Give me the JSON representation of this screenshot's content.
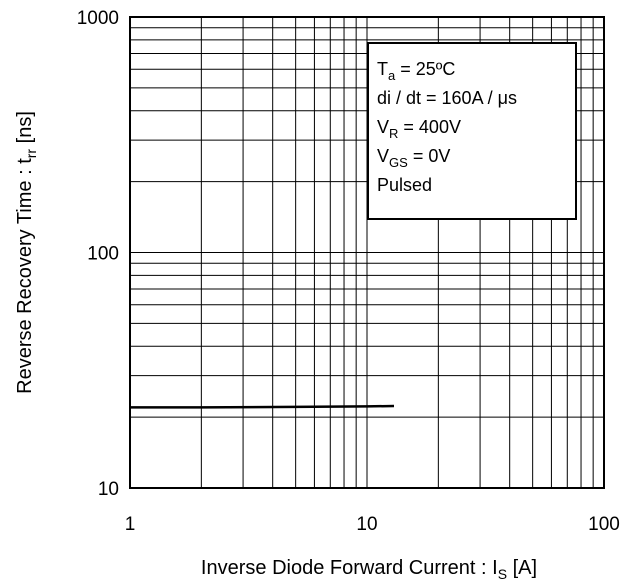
{
  "chart_data": {
    "type": "line",
    "xscale": "log",
    "yscale": "log",
    "xlim": [
      1,
      100
    ],
    "ylim": [
      10,
      1000
    ],
    "grid": true,
    "x_ticks": [
      "1",
      "10",
      "100"
    ],
    "y_ticks": [
      "1000",
      "100",
      "10"
    ],
    "xlabel": {
      "text": "Inverse Diode  Forward Current : I",
      "sub": "S",
      "suffix": " [A]"
    },
    "ylabel": {
      "text": "Reverse Recovery Time : t",
      "sub": "rr",
      "suffix": " [ns]"
    },
    "series": [
      {
        "x": [
          1,
          2,
          5,
          10,
          13
        ],
        "y": [
          22,
          22,
          22.1,
          22.2,
          22.3
        ]
      }
    ],
    "conditions": [
      {
        "main": "T",
        "sub": "a",
        "rest": " = 25ºC"
      },
      {
        "main": "di / dt = 160A / μs",
        "sub": "",
        "rest": ""
      },
      {
        "main": "V",
        "sub": "R",
        "rest": " = 400V"
      },
      {
        "main": "V",
        "sub": "GS",
        "rest": " = 0V"
      },
      {
        "main": "Pulsed",
        "sub": "",
        "rest": ""
      }
    ],
    "colors": {
      "line": "#000000",
      "grid": "#000000",
      "background": "#ffffff"
    }
  }
}
